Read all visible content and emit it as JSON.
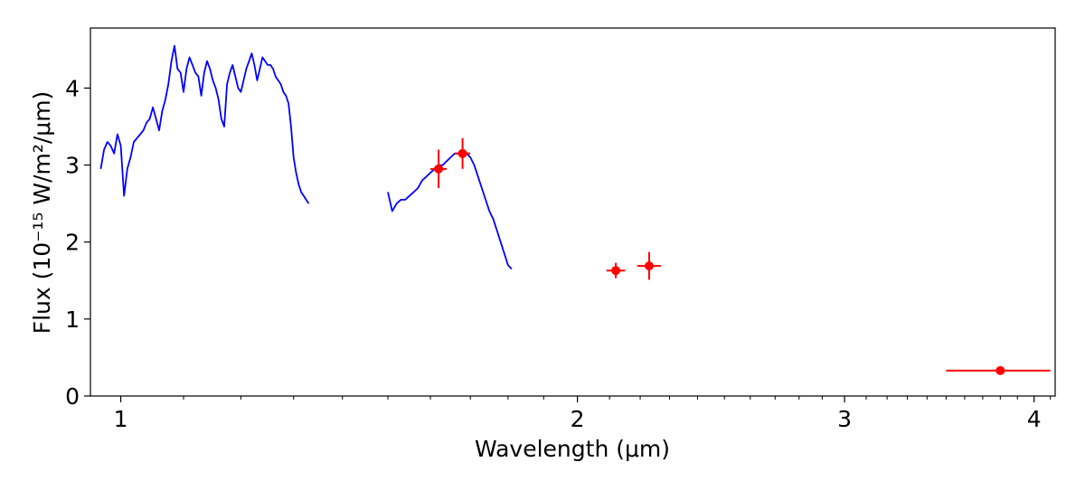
{
  "chart_data": {
    "type": "line",
    "xscale": "log",
    "xlim": [
      0.955,
      4.13
    ],
    "ylim": [
      0,
      4.78
    ],
    "xlabel": "Wavelength (μm)",
    "ylabel": "Flux (10⁻¹⁵ W/m²/μm)",
    "grid": false,
    "x_major_ticks": [
      1,
      2,
      3,
      4
    ],
    "x_major_tick_labels": [
      "1",
      "2",
      "3",
      "4"
    ],
    "x_minor_ticks": [
      1.1,
      1.2,
      1.3,
      1.4,
      1.5,
      1.6,
      1.7,
      1.8,
      1.9,
      2.1,
      2.2,
      2.3,
      2.4,
      2.5,
      2.6,
      2.7,
      2.8,
      2.9,
      3.1,
      3.2,
      3.3,
      3.4,
      3.5,
      3.6,
      3.7,
      3.8,
      3.9,
      4.1
    ],
    "y_ticks": [
      0,
      1,
      2,
      3,
      4
    ],
    "y_tick_labels": [
      "0",
      "1",
      "2",
      "3",
      "4"
    ],
    "series": [
      {
        "kind": "spectrum",
        "color": "#0000ff",
        "segments": [
          {
            "x": [
              0.97,
              0.975,
              0.98,
              0.985,
              0.99,
              0.995,
              1.0,
              1.005,
              1.01,
              1.015,
              1.02,
              1.025,
              1.03,
              1.035,
              1.04,
              1.045,
              1.05,
              1.055,
              1.06,
              1.065,
              1.07,
              1.075,
              1.08,
              1.085,
              1.09,
              1.095,
              1.1,
              1.105,
              1.11,
              1.115,
              1.12,
              1.125,
              1.13,
              1.135,
              1.14,
              1.145,
              1.15,
              1.155,
              1.16,
              1.165,
              1.17,
              1.175,
              1.18,
              1.185,
              1.19,
              1.195,
              1.2,
              1.205,
              1.21,
              1.215,
              1.22,
              1.225,
              1.23,
              1.235,
              1.24,
              1.245,
              1.25,
              1.255,
              1.26,
              1.265,
              1.27,
              1.275,
              1.28,
              1.285,
              1.29,
              1.295,
              1.3,
              1.305,
              1.31,
              1.315,
              1.32,
              1.325,
              1.33
            ],
            "y": [
              2.95,
              3.2,
              3.3,
              3.25,
              3.15,
              3.4,
              3.25,
              2.6,
              2.95,
              3.1,
              3.3,
              3.35,
              3.4,
              3.45,
              3.55,
              3.6,
              3.75,
              3.6,
              3.45,
              3.7,
              3.85,
              4.05,
              4.35,
              4.55,
              4.25,
              4.2,
              3.95,
              4.25,
              4.4,
              4.3,
              4.2,
              4.15,
              3.9,
              4.2,
              4.35,
              4.25,
              4.1,
              4.0,
              3.85,
              3.6,
              3.5,
              4.05,
              4.2,
              4.3,
              4.15,
              4.0,
              3.95,
              4.1,
              4.25,
              4.35,
              4.45,
              4.3,
              4.1,
              4.25,
              4.4,
              4.35,
              4.3,
              4.3,
              4.25,
              4.15,
              4.1,
              4.05,
              3.95,
              3.9,
              3.8,
              3.5,
              3.1,
              2.9,
              2.75,
              2.65,
              2.6,
              2.55,
              2.5
            ]
          },
          {
            "x": [
              1.5,
              1.51,
              1.52,
              1.53,
              1.54,
              1.55,
              1.56,
              1.57,
              1.58,
              1.59,
              1.6,
              1.61,
              1.62,
              1.63,
              1.64,
              1.65,
              1.66,
              1.67,
              1.68,
              1.69,
              1.7,
              1.71,
              1.72,
              1.73,
              1.74,
              1.75,
              1.76,
              1.77,
              1.78,
              1.79,
              1.8,
              1.81
            ],
            "y": [
              2.65,
              2.4,
              2.5,
              2.55,
              2.55,
              2.6,
              2.65,
              2.7,
              2.8,
              2.85,
              2.9,
              2.95,
              3.0,
              3.0,
              3.05,
              3.1,
              3.15,
              3.15,
              3.2,
              3.15,
              3.1,
              3.0,
              2.85,
              2.7,
              2.55,
              2.4,
              2.3,
              2.15,
              2.0,
              1.85,
              1.7,
              1.65
            ]
          }
        ]
      },
      {
        "kind": "photometry",
        "color": "#ff0000",
        "points": [
          {
            "x": 1.62,
            "y": 2.95,
            "xerr": 0.02,
            "yerr": 0.25
          },
          {
            "x": 1.68,
            "y": 3.15,
            "xerr": 0.02,
            "yerr": 0.2
          },
          {
            "x": 2.12,
            "y": 1.63,
            "xerr": 0.03,
            "yerr": 0.1
          },
          {
            "x": 2.23,
            "y": 1.69,
            "xerr": 0.04,
            "yerr": 0.18
          },
          {
            "x": 3.8,
            "y": 0.33,
            "xerr": 0.3,
            "yerr": 0.02
          }
        ]
      }
    ]
  }
}
